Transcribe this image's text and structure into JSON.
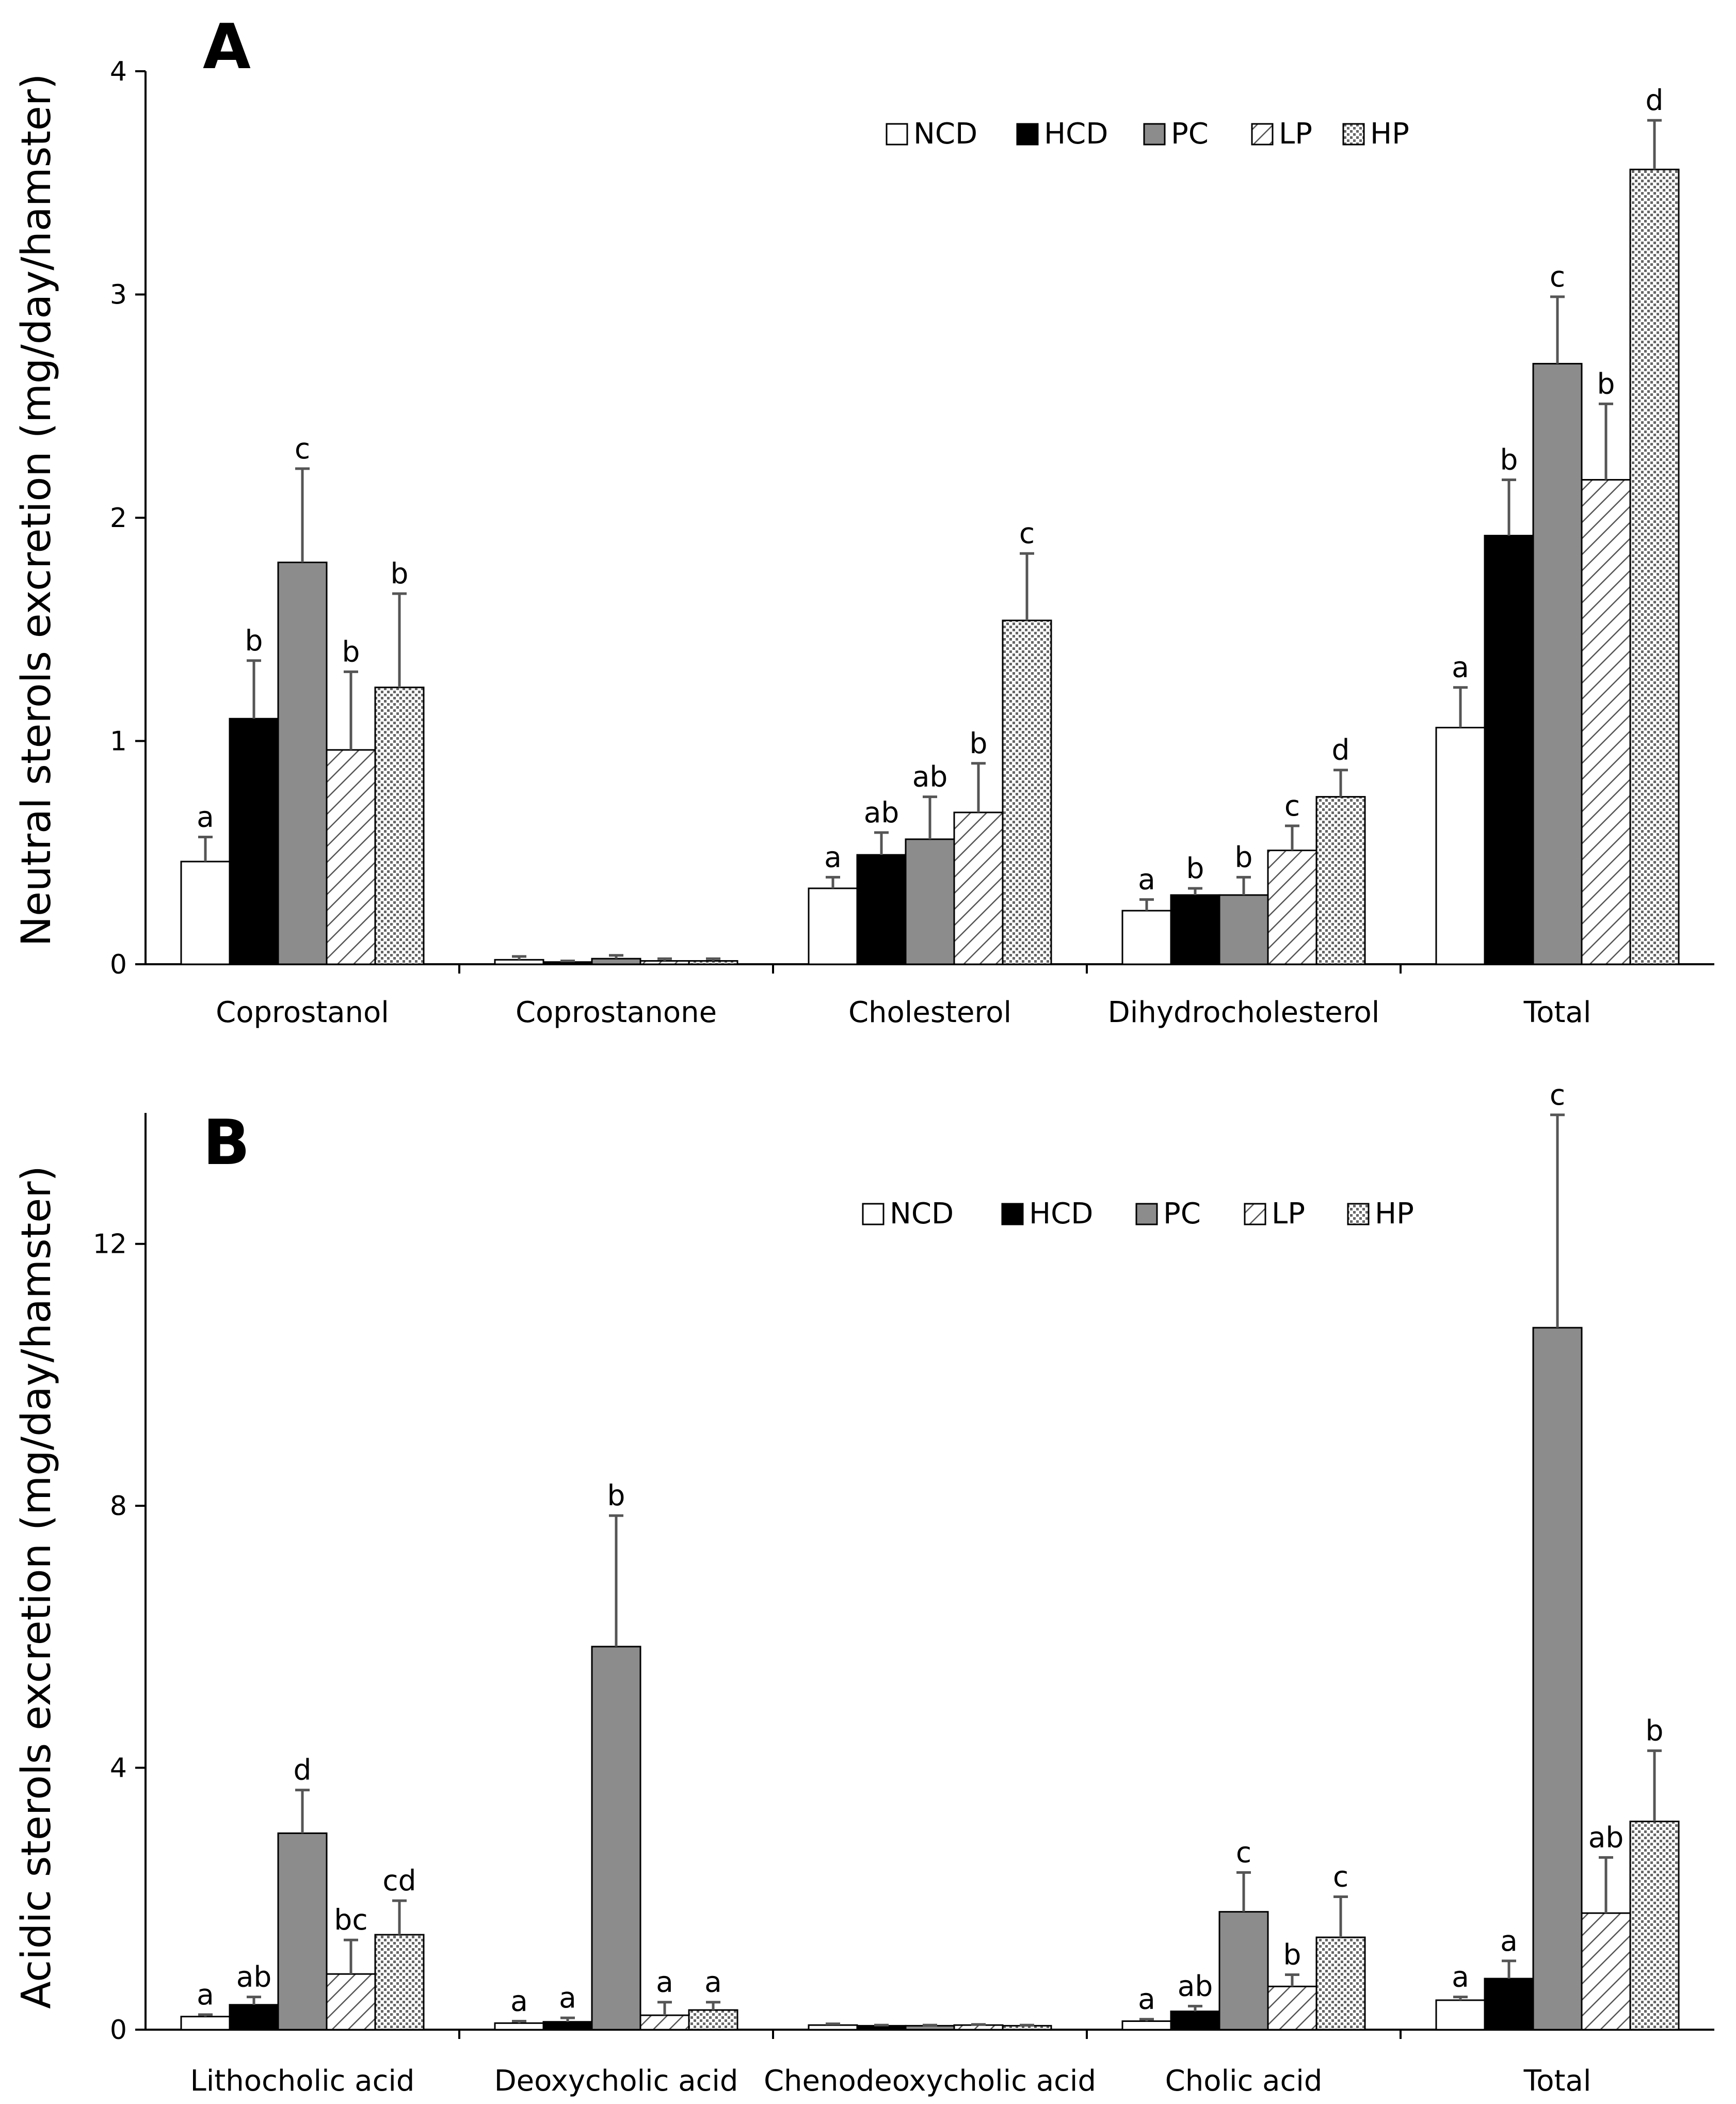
{
  "colors": {
    "NCD": "#ffffff",
    "HCD": "#000000",
    "PC": "#8c8c8c",
    "LP": "hatch",
    "HP": "dots",
    "axis": "#000000",
    "error_bar": "#555555"
  },
  "chart_data": [
    {
      "panel": "A",
      "type": "bar",
      "ylabel": "Neutral sterols excretion (mg/day/hamster)",
      "ylim": [
        0,
        4
      ],
      "yticks": [
        "0",
        "1",
        "2",
        "3",
        "4"
      ],
      "legend_position": "top-right",
      "legend": [
        "NCD",
        "HCD",
        "PC",
        "LP",
        "HP"
      ],
      "categories": [
        "Coprostanol",
        "Coprostanone",
        "Cholesterol",
        "Dihydrocholesterol",
        "Total"
      ],
      "series": [
        {
          "name": "NCD",
          "values": [
            0.46,
            0.02,
            0.34,
            0.24,
            1.06
          ],
          "errors": [
            0.11,
            0.015,
            0.05,
            0.05,
            0.18
          ],
          "letters": [
            "a",
            "",
            "a",
            "a",
            "a"
          ]
        },
        {
          "name": "HCD",
          "values": [
            1.1,
            0.01,
            0.49,
            0.31,
            1.92
          ],
          "errors": [
            0.26,
            0.005,
            0.1,
            0.03,
            0.25
          ],
          "letters": [
            "b",
            "",
            "ab",
            "b",
            "b"
          ]
        },
        {
          "name": "PC",
          "values": [
            1.8,
            0.025,
            0.56,
            0.31,
            2.69
          ],
          "errors": [
            0.42,
            0.015,
            0.19,
            0.08,
            0.3
          ],
          "letters": [
            "c",
            "",
            "ab",
            "b",
            "c"
          ]
        },
        {
          "name": "LP",
          "values": [
            0.96,
            0.015,
            0.68,
            0.51,
            2.17
          ],
          "errors": [
            0.35,
            0.01,
            0.22,
            0.11,
            0.34
          ],
          "letters": [
            "b",
            "",
            "b",
            "c",
            "b"
          ]
        },
        {
          "name": "HP",
          "values": [
            1.24,
            0.015,
            1.54,
            0.75,
            3.56
          ],
          "errors": [
            0.42,
            0.01,
            0.3,
            0.12,
            0.22
          ],
          "letters": [
            "b",
            "",
            "c",
            "d",
            "d"
          ]
        }
      ]
    },
    {
      "panel": "B",
      "type": "bar",
      "ylabel": "Acidic sterols excretion (mg/day/hamster)",
      "ylim": [
        0,
        14
      ],
      "yticks": [
        "0",
        "4",
        "8",
        "12"
      ],
      "legend_position": "top-right",
      "legend": [
        "NCD",
        "HCD",
        "PC",
        "LP",
        "HP"
      ],
      "categories": [
        "Lithocholic acid",
        "Deoxycholic acid",
        "Chenodeoxycholic acid",
        "Cholic acid",
        "Total"
      ],
      "series": [
        {
          "name": "NCD",
          "values": [
            0.2,
            0.1,
            0.07,
            0.13,
            0.45
          ],
          "errors": [
            0.03,
            0.03,
            0.02,
            0.03,
            0.05
          ],
          "letters": [
            "a",
            "a",
            "",
            "a",
            "a"
          ]
        },
        {
          "name": "HCD",
          "values": [
            0.38,
            0.12,
            0.06,
            0.28,
            0.78
          ],
          "errors": [
            0.12,
            0.06,
            0.01,
            0.08,
            0.27
          ],
          "letters": [
            "ab",
            "a",
            "",
            "ab",
            "a"
          ]
        },
        {
          "name": "PC",
          "values": [
            3.0,
            5.85,
            0.06,
            1.8,
            10.72
          ],
          "errors": [
            0.66,
            2.0,
            0.01,
            0.6,
            3.25
          ],
          "letters": [
            "d",
            "b",
            "",
            "c",
            "c"
          ]
        },
        {
          "name": "LP",
          "values": [
            0.85,
            0.22,
            0.07,
            0.66,
            1.78
          ],
          "errors": [
            0.52,
            0.2,
            0.01,
            0.18,
            0.85
          ],
          "letters": [
            "bc",
            "a",
            "",
            "b",
            "ab"
          ]
        },
        {
          "name": "HP",
          "values": [
            1.45,
            0.3,
            0.06,
            1.41,
            3.18
          ],
          "errors": [
            0.52,
            0.12,
            0.01,
            0.62,
            1.08
          ],
          "letters": [
            "cd",
            "a",
            "",
            "c",
            "b"
          ]
        }
      ]
    }
  ]
}
